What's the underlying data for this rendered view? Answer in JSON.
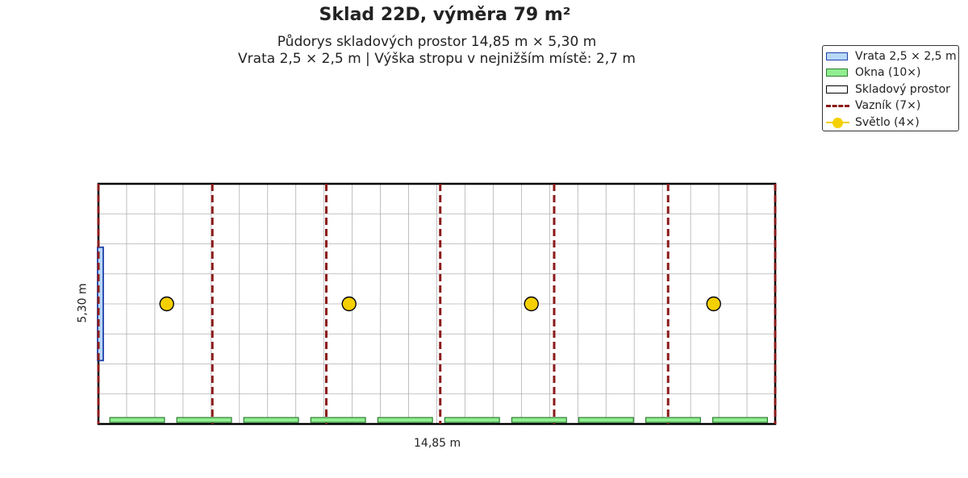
{
  "title": "Sklad 22D, výměra 79 m²",
  "subtitle_line1": "Půdorys skladových prostor 14,85 m × 5,30 m",
  "subtitle_line2": "Vrata 2,5 × 2,5 m | Výška stropu v nejnižším místě: 2,7 m",
  "dimensions": {
    "width_label": "14,85 m",
    "height_label": "5,30 m",
    "width_m": 14.85,
    "height_m": 5.3
  },
  "legend": [
    {
      "key": "gate",
      "label": "Vrata 2,5 × 2,5 m",
      "color": "#b8d8f8",
      "edge": "#1f3fa8"
    },
    {
      "key": "windows",
      "label": "Okna (10×)",
      "color": "#90ee90",
      "edge": "#2e7d32"
    },
    {
      "key": "storage",
      "label": "Skladový prostor",
      "color": "#ffffff",
      "edge": "#000000"
    },
    {
      "key": "truss",
      "label": "Vazník (7×)",
      "color": "#8b1a1a"
    },
    {
      "key": "light",
      "label": "Světlo (4×)",
      "color": "#f5d000"
    }
  ],
  "colors": {
    "grid": "#b0b0b0",
    "wall": "#000000",
    "truss": "#8b1a1a",
    "window_fill": "#90ee90",
    "window_edge": "#2e7d32",
    "gate_fill": "#b8d8f8",
    "gate_edge": "#1f3fa8",
    "light_fill": "#f5d000"
  },
  "gate": {
    "wall": "left",
    "y_from_m": 1.4,
    "y_to_m": 3.9
  },
  "trusses_x_m": [
    0,
    2.5,
    5.0,
    7.5,
    10.0,
    12.5,
    14.85
  ],
  "lights": [
    {
      "x_m": 1.5,
      "y_m": 2.65
    },
    {
      "x_m": 5.5,
      "y_m": 2.65
    },
    {
      "x_m": 9.5,
      "y_m": 2.65
    },
    {
      "x_m": 13.5,
      "y_m": 2.65
    }
  ],
  "windows_x_m": [
    [
      0.25,
      1.45
    ],
    [
      1.72,
      2.92
    ],
    [
      3.19,
      4.39
    ],
    [
      4.66,
      5.86
    ],
    [
      6.13,
      7.33
    ],
    [
      7.6,
      8.8
    ],
    [
      9.07,
      10.27
    ],
    [
      10.54,
      11.74
    ],
    [
      12.01,
      13.21
    ],
    [
      13.48,
      14.68
    ]
  ]
}
